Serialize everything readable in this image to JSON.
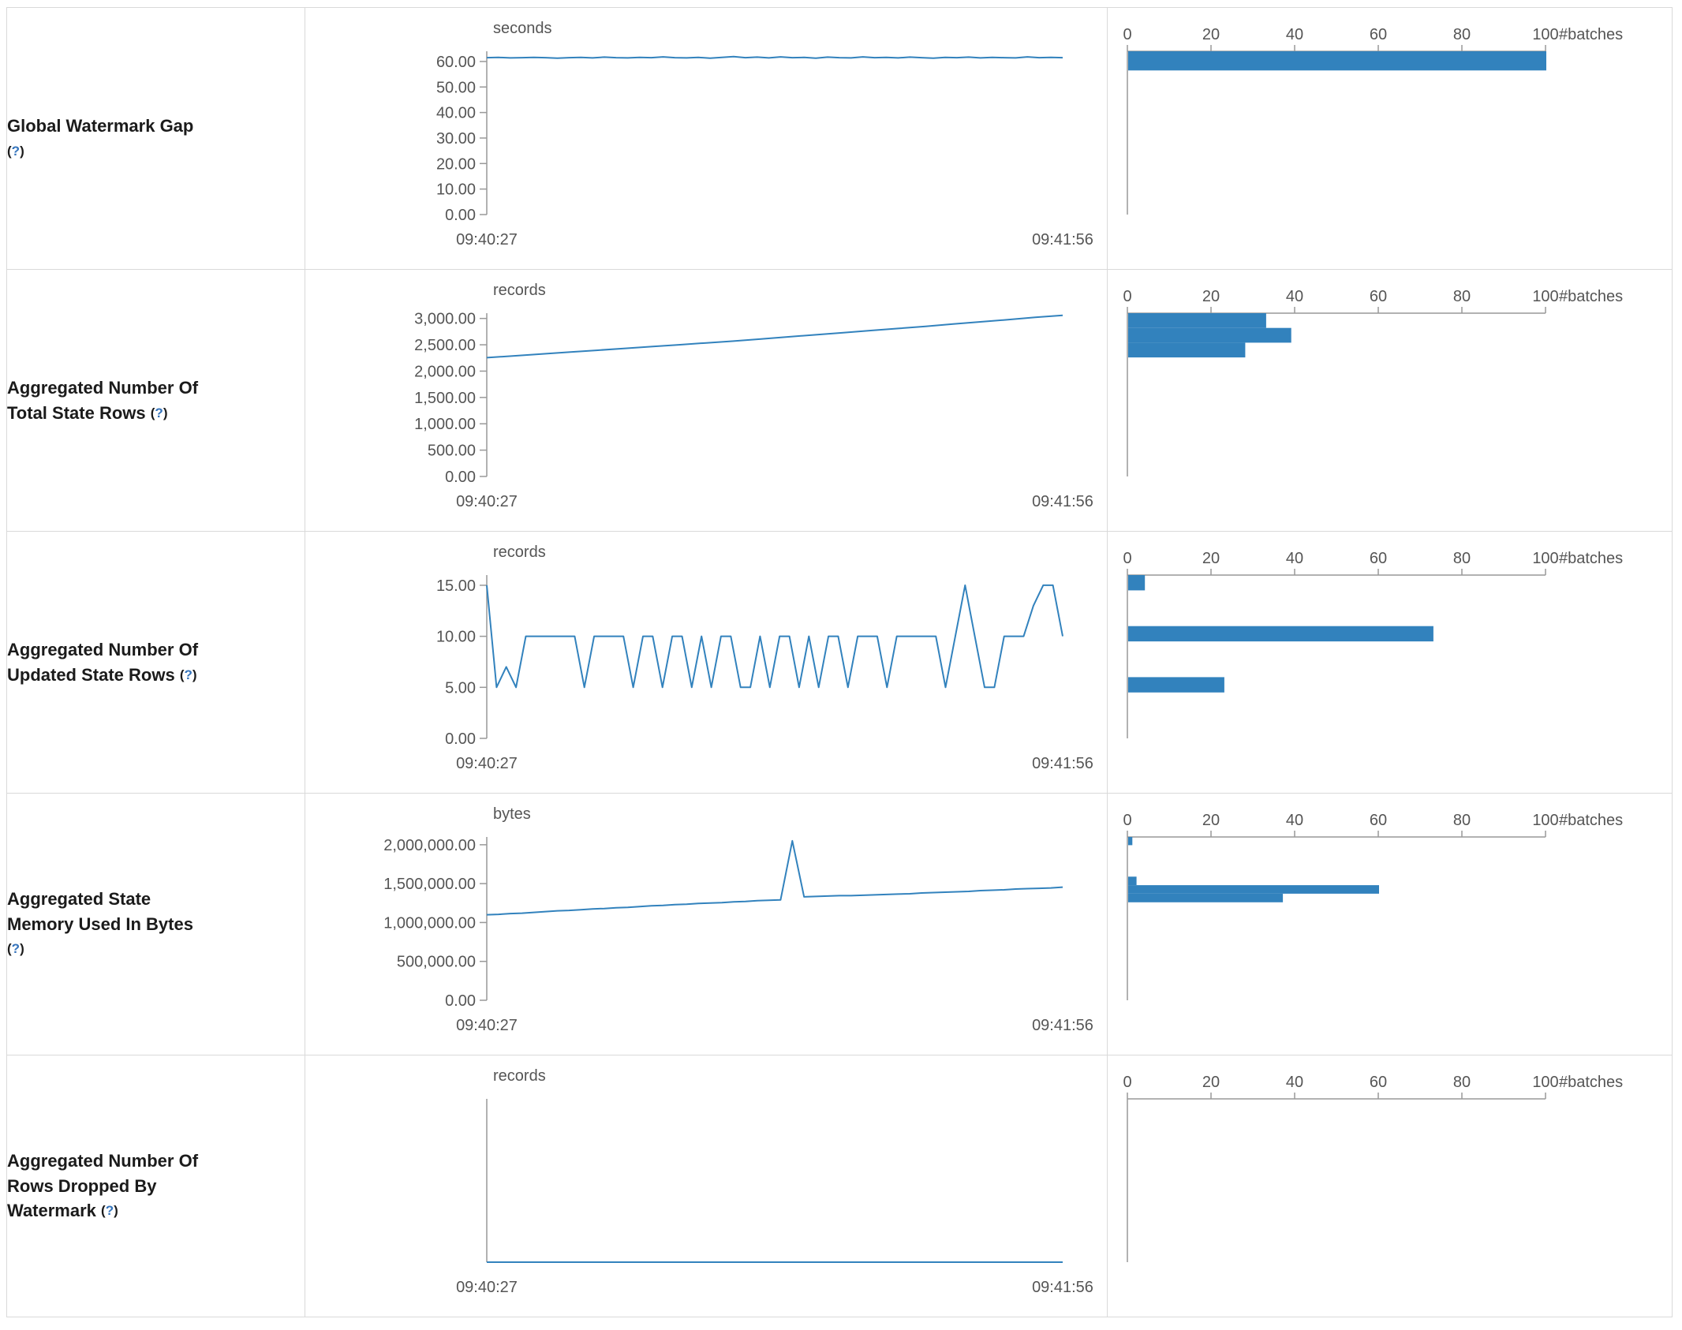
{
  "colors": {
    "accent": "#3282bd",
    "axis": "#999999",
    "tick_text": "#555555",
    "label_text": "#1b1b1b",
    "link": "#3574bc",
    "border": "#d9d9d9"
  },
  "help_badge": {
    "open": "(",
    "label": "?",
    "close": ")"
  },
  "rows": [
    {
      "id": "global-watermark-gap",
      "label_lines": [
        "Global Watermark Gap"
      ],
      "help_own_line": true
    },
    {
      "id": "aggregated-number-of-total-state-rows",
      "label_lines": [
        "Aggregated Number Of",
        "Total State Rows"
      ],
      "help_own_line": false
    },
    {
      "id": "aggregated-number-of-updated-state-rows",
      "label_lines": [
        "Aggregated Number Of",
        "Updated State Rows"
      ],
      "help_own_line": false
    },
    {
      "id": "aggregated-state-memory-used-in-bytes",
      "label_lines": [
        "Aggregated State",
        "Memory Used In Bytes"
      ],
      "help_own_line": true
    },
    {
      "id": "aggregated-number-of-rows-dropped-by-watermark",
      "label_lines": [
        "Aggregated Number Of",
        "Rows Dropped By",
        "Watermark"
      ],
      "help_own_line": false
    }
  ],
  "chart_data": [
    {
      "type": "line",
      "title": "Global Watermark Gap timeline",
      "ylabel": "seconds",
      "ylim": [
        0,
        64
      ],
      "yticks": [
        {
          "v": 60,
          "t": "60.00"
        },
        {
          "v": 50,
          "t": "50.00"
        },
        {
          "v": 40,
          "t": "40.00"
        },
        {
          "v": 30,
          "t": "30.00"
        },
        {
          "v": 20,
          "t": "20.00"
        },
        {
          "v": 10,
          "t": "10.00"
        },
        {
          "v": 0,
          "t": "0.00"
        }
      ],
      "xticks": [
        "09:40:27",
        "09:41:56"
      ],
      "values": [
        61.5,
        61.6,
        61.4,
        61.5,
        61.6,
        61.5,
        61.3,
        61.5,
        61.6,
        61.4,
        61.7,
        61.5,
        61.4,
        61.6,
        61.5,
        61.8,
        61.5,
        61.4,
        61.6,
        61.3,
        61.6,
        61.9,
        61.5,
        61.7,
        61.4,
        61.8,
        61.5,
        61.6,
        61.3,
        61.7,
        61.5,
        61.4,
        61.8,
        61.5,
        61.6,
        61.4,
        61.7,
        61.5,
        61.3,
        61.6,
        61.5,
        61.7,
        61.4,
        61.6,
        61.5,
        61.4,
        61.8,
        61.5,
        61.6,
        61.5
      ]
    },
    {
      "type": "bar",
      "title": "Global Watermark Gap histogram",
      "xlabel": "#batches",
      "xlim": [
        0,
        100
      ],
      "xticks": [
        0,
        20,
        40,
        60,
        80,
        100
      ],
      "ylim": [
        0,
        64
      ],
      "bins": [
        {
          "lo": 56.5,
          "hi": 64,
          "count": 100
        }
      ]
    },
    {
      "type": "line",
      "title": "Aggregated Number Of Total State Rows timeline",
      "ylabel": "records",
      "ylim": [
        0,
        3100
      ],
      "yticks": [
        {
          "v": 3000,
          "t": "3,000.00"
        },
        {
          "v": 2500,
          "t": "2,500.00"
        },
        {
          "v": 2000,
          "t": "2,000.00"
        },
        {
          "v": 1500,
          "t": "1,500.00"
        },
        {
          "v": 1000,
          "t": "1,000.00"
        },
        {
          "v": 500,
          "t": "500.00"
        },
        {
          "v": 0,
          "t": "0.00"
        }
      ],
      "xticks": [
        "09:40:27",
        "09:41:56"
      ],
      "values": [
        2255,
        2290,
        2325,
        2360,
        2395,
        2430,
        2465,
        2500,
        2535,
        2570,
        2610,
        2650,
        2690,
        2730,
        2770,
        2810,
        2850,
        2895,
        2935,
        2975,
        3020,
        3060
      ]
    },
    {
      "type": "bar",
      "title": "Aggregated Number Of Total State Rows histogram",
      "xlabel": "#batches",
      "xlim": [
        0,
        100
      ],
      "xticks": [
        0,
        20,
        40,
        60,
        80,
        100
      ],
      "ylim": [
        0,
        3100
      ],
      "bins": [
        {
          "lo": 2820,
          "hi": 3100,
          "count": 33
        },
        {
          "lo": 2540,
          "hi": 2820,
          "count": 39
        },
        {
          "lo": 2260,
          "hi": 2540,
          "count": 28
        }
      ]
    },
    {
      "type": "line",
      "title": "Aggregated Number Of Updated State Rows timeline",
      "ylabel": "records",
      "ylim": [
        0,
        16
      ],
      "yticks": [
        {
          "v": 15,
          "t": "15.00"
        },
        {
          "v": 10,
          "t": "10.00"
        },
        {
          "v": 5,
          "t": "5.00"
        },
        {
          "v": 0,
          "t": "0.00"
        }
      ],
      "xticks": [
        "09:40:27",
        "09:41:56"
      ],
      "values": [
        15,
        5,
        7,
        5,
        10,
        10,
        10,
        10,
        10,
        10,
        5,
        10,
        10,
        10,
        10,
        5,
        10,
        10,
        5,
        10,
        10,
        5,
        10,
        5,
        10,
        10,
        5,
        5,
        10,
        5,
        10,
        10,
        5,
        10,
        5,
        10,
        10,
        5,
        10,
        10,
        10,
        5,
        10,
        10,
        10,
        10,
        10,
        5,
        10,
        15,
        10,
        5,
        5,
        10,
        10,
        10,
        13,
        15,
        15,
        10
      ]
    },
    {
      "type": "bar",
      "title": "Aggregated Number Of Updated State Rows histogram",
      "xlabel": "#batches",
      "xlim": [
        0,
        100
      ],
      "xticks": [
        0,
        20,
        40,
        60,
        80,
        100
      ],
      "ylim": [
        0,
        16
      ],
      "bins": [
        {
          "lo": 14.5,
          "hi": 16,
          "count": 4
        },
        {
          "lo": 9.5,
          "hi": 11,
          "count": 73
        },
        {
          "lo": 4.5,
          "hi": 6,
          "count": 23
        }
      ]
    },
    {
      "type": "line",
      "title": "Aggregated State Memory Used In Bytes timeline",
      "ylabel": "bytes",
      "ylim": [
        0,
        2100000
      ],
      "yticks": [
        {
          "v": 2000000,
          "t": "2,000,000.00"
        },
        {
          "v": 1500000,
          "t": "1,500,000.00"
        },
        {
          "v": 1000000,
          "t": "1,000,000.00"
        },
        {
          "v": 500000,
          "t": "500,000.00"
        },
        {
          "v": 0,
          "t": "0.00"
        }
      ],
      "xticks": [
        "09:40:27",
        "09:41:56"
      ],
      "values": [
        1100000,
        1105000,
        1115000,
        1120000,
        1130000,
        1140000,
        1150000,
        1155000,
        1165000,
        1175000,
        1180000,
        1190000,
        1195000,
        1205000,
        1215000,
        1220000,
        1230000,
        1235000,
        1245000,
        1250000,
        1255000,
        1265000,
        1270000,
        1280000,
        1285000,
        1290000,
        2050000,
        1330000,
        1335000,
        1340000,
        1345000,
        1345000,
        1350000,
        1355000,
        1360000,
        1365000,
        1370000,
        1380000,
        1385000,
        1390000,
        1395000,
        1400000,
        1410000,
        1415000,
        1420000,
        1430000,
        1435000,
        1440000,
        1445000,
        1455000
      ]
    },
    {
      "type": "bar",
      "title": "Aggregated State Memory Used In Bytes histogram",
      "xlabel": "#batches",
      "xlim": [
        0,
        100
      ],
      "xticks": [
        0,
        20,
        40,
        60,
        80,
        100
      ],
      "ylim": [
        0,
        2100000
      ],
      "bins": [
        {
          "lo": 1995000,
          "hi": 2100000,
          "count": 1
        },
        {
          "lo": 1480000,
          "hi": 1590000,
          "count": 2
        },
        {
          "lo": 1370000,
          "hi": 1480000,
          "count": 60
        },
        {
          "lo": 1260000,
          "hi": 1370000,
          "count": 37
        }
      ]
    },
    {
      "type": "line",
      "title": "Aggregated Number Of Rows Dropped By Watermark timeline",
      "ylabel": "records",
      "ylim": [
        0,
        1
      ],
      "yticks": [],
      "xticks": [
        "09:40:27",
        "09:41:56"
      ],
      "values": [
        0,
        0,
        0,
        0,
        0,
        0,
        0,
        0,
        0,
        0
      ]
    },
    {
      "type": "bar",
      "title": "Aggregated Number Of Rows Dropped By Watermark histogram",
      "xlabel": "#batches",
      "xlim": [
        0,
        100
      ],
      "xticks": [
        0,
        20,
        40,
        60,
        80,
        100
      ],
      "ylim": [
        0,
        1
      ],
      "bins": []
    }
  ]
}
